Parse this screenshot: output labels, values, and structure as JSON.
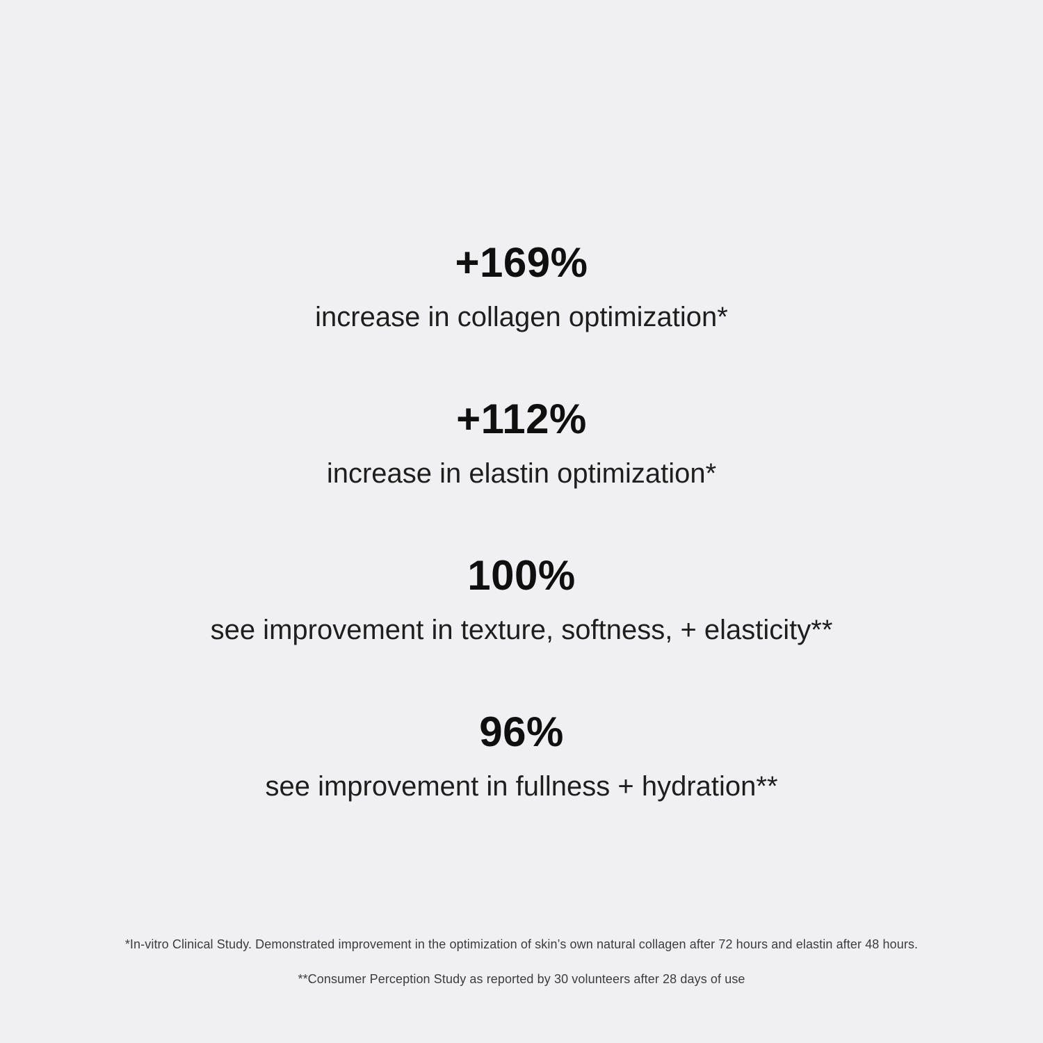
{
  "page": {
    "background_color": "#f0f0f2",
    "text_color_primary": "#0f0f0f",
    "text_color_secondary": "#1e1e1e",
    "text_color_footnote": "#3c3c3c"
  },
  "stats": [
    {
      "value": "+169%",
      "label": "increase in collagen optimization*"
    },
    {
      "value": "+112%",
      "label": "increase in elastin optimization*"
    },
    {
      "value": "100%",
      "label": "see improvement in texture, softness, + elasticity**"
    },
    {
      "value": "96%",
      "label": "see improvement in fullness + hydration**"
    }
  ],
  "footnotes": [
    "*In-vitro Clinical Study. Demonstrated improvement in the optimization of skin’s own natural collagen after 72 hours and elastin after 48 hours.",
    "**Consumer Perception Study as reported by 30 volunteers after 28 days of use"
  ]
}
